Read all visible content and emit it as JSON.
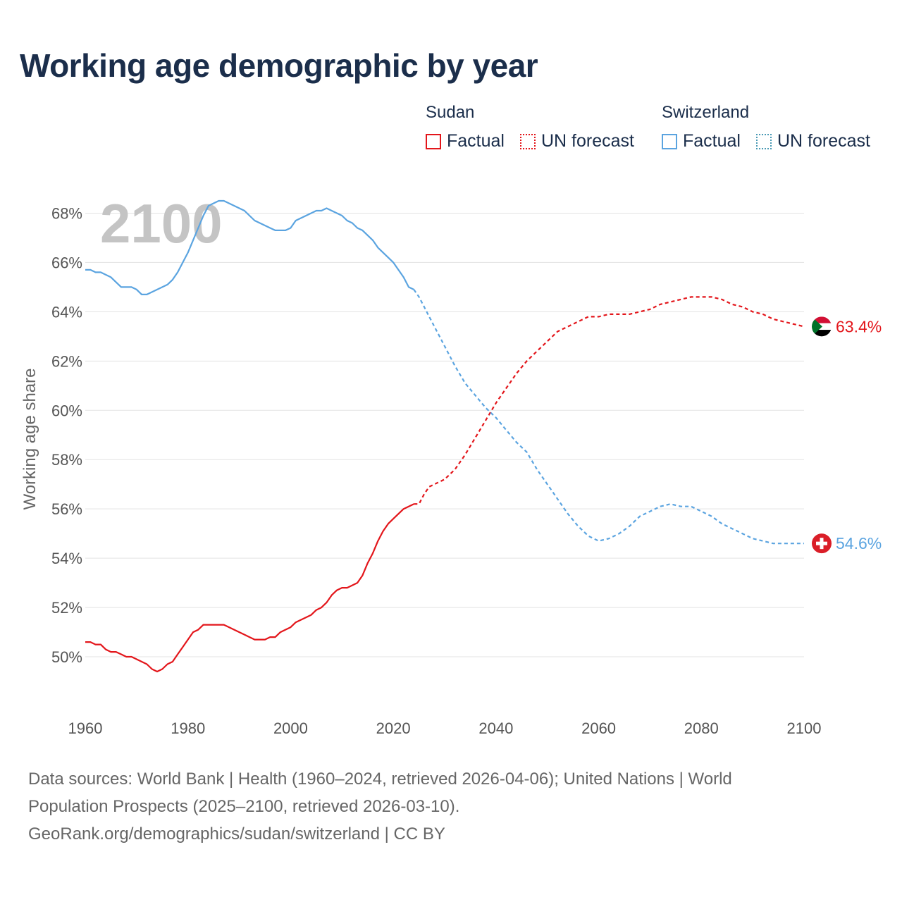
{
  "title": "Working age demographic by year",
  "legend": {
    "groups": [
      {
        "name": "Sudan",
        "factual_label": "Factual",
        "forecast_label": "UN forecast"
      },
      {
        "name": "Switzerland",
        "factual_label": "Factual",
        "forecast_label": "UN forecast"
      }
    ]
  },
  "year_watermark": "2100",
  "source_line1": "Data sources: World Bank | Health (1960–2024, retrieved 2026-04-06); United Nations | World",
  "source_line2": "Population Prospects (2025–2100, retrieved 2026-03-10).",
  "source_line3": "GeoRank.org/demographics/sudan/switzerland | CC BY",
  "colors": {
    "sudan": "#e3161b",
    "switzerland": "#5ba4e0",
    "title": "#1b2e4b"
  },
  "chart_data": {
    "type": "line",
    "title": "Working age demographic by year",
    "xlabel": "",
    "ylabel": "Working age share",
    "xlim": [
      1960,
      2100
    ],
    "ylim": [
      48,
      69.5
    ],
    "x_ticks": [
      1960,
      1980,
      2000,
      2020,
      2040,
      2060,
      2080,
      2100
    ],
    "x_tick_labels": [
      "1960",
      "1980",
      "2000",
      "2020",
      "2040",
      "2060",
      "2080",
      "2100"
    ],
    "y_ticks": [
      50,
      52,
      54,
      56,
      58,
      60,
      62,
      64,
      66,
      68
    ],
    "y_tick_labels": [
      "50%",
      "52%",
      "54%",
      "56%",
      "58%",
      "60%",
      "62%",
      "64%",
      "66%",
      "68%"
    ],
    "factual_end_year": 2024,
    "series": [
      {
        "name": "Sudan",
        "color": "#e3161b",
        "end_label": "63.4%",
        "x": [
          1960,
          1961,
          1962,
          1963,
          1964,
          1965,
          1966,
          1967,
          1968,
          1969,
          1970,
          1971,
          1972,
          1973,
          1974,
          1975,
          1976,
          1977,
          1978,
          1979,
          1980,
          1981,
          1982,
          1983,
          1984,
          1985,
          1986,
          1987,
          1988,
          1989,
          1990,
          1991,
          1992,
          1993,
          1994,
          1995,
          1996,
          1997,
          1998,
          1999,
          2000,
          2001,
          2002,
          2003,
          2004,
          2005,
          2006,
          2007,
          2008,
          2009,
          2010,
          2011,
          2012,
          2013,
          2014,
          2015,
          2016,
          2017,
          2018,
          2019,
          2020,
          2021,
          2022,
          2023,
          2024,
          2025,
          2026,
          2027,
          2028,
          2029,
          2030,
          2032,
          2034,
          2036,
          2038,
          2040,
          2042,
          2044,
          2046,
          2048,
          2050,
          2052,
          2054,
          2056,
          2058,
          2060,
          2062,
          2064,
          2066,
          2068,
          2070,
          2072,
          2074,
          2076,
          2078,
          2080,
          2082,
          2084,
          2086,
          2088,
          2090,
          2092,
          2094,
          2096,
          2098,
          2100
        ],
        "values": [
          50.6,
          50.6,
          50.5,
          50.5,
          50.3,
          50.2,
          50.2,
          50.1,
          50.0,
          50.0,
          49.9,
          49.8,
          49.7,
          49.5,
          49.4,
          49.5,
          49.7,
          49.8,
          50.1,
          50.4,
          50.7,
          51.0,
          51.1,
          51.3,
          51.3,
          51.3,
          51.3,
          51.3,
          51.2,
          51.1,
          51.0,
          50.9,
          50.8,
          50.7,
          50.7,
          50.7,
          50.8,
          50.8,
          51.0,
          51.1,
          51.2,
          51.4,
          51.5,
          51.6,
          51.7,
          51.9,
          52.0,
          52.2,
          52.5,
          52.7,
          52.8,
          52.8,
          52.9,
          53.0,
          53.3,
          53.8,
          54.2,
          54.7,
          55.1,
          55.4,
          55.6,
          55.8,
          56.0,
          56.1,
          56.2,
          56.2,
          56.6,
          56.9,
          57.0,
          57.1,
          57.2,
          57.6,
          58.2,
          58.9,
          59.6,
          60.3,
          60.9,
          61.5,
          62.0,
          62.4,
          62.8,
          63.2,
          63.4,
          63.6,
          63.8,
          63.8,
          63.9,
          63.9,
          63.9,
          64.0,
          64.1,
          64.3,
          64.4,
          64.5,
          64.6,
          64.6,
          64.6,
          64.5,
          64.3,
          64.2,
          64.0,
          63.9,
          63.7,
          63.6,
          63.5,
          63.4
        ]
      },
      {
        "name": "Switzerland",
        "color": "#5ba4e0",
        "end_label": "54.6%",
        "x": [
          1960,
          1961,
          1962,
          1963,
          1964,
          1965,
          1966,
          1967,
          1968,
          1969,
          1970,
          1971,
          1972,
          1973,
          1974,
          1975,
          1976,
          1977,
          1978,
          1979,
          1980,
          1981,
          1982,
          1983,
          1984,
          1985,
          1986,
          1987,
          1988,
          1989,
          1990,
          1991,
          1992,
          1993,
          1994,
          1995,
          1996,
          1997,
          1998,
          1999,
          2000,
          2001,
          2002,
          2003,
          2004,
          2005,
          2006,
          2007,
          2008,
          2009,
          2010,
          2011,
          2012,
          2013,
          2014,
          2015,
          2016,
          2017,
          2018,
          2019,
          2020,
          2021,
          2022,
          2023,
          2024,
          2025,
          2026,
          2027,
          2028,
          2029,
          2030,
          2032,
          2034,
          2036,
          2038,
          2040,
          2042,
          2044,
          2046,
          2048,
          2050,
          2052,
          2054,
          2056,
          2058,
          2060,
          2062,
          2064,
          2066,
          2068,
          2070,
          2072,
          2074,
          2076,
          2078,
          2080,
          2082,
          2084,
          2086,
          2088,
          2090,
          2092,
          2094,
          2096,
          2098,
          2100
        ],
        "values": [
          65.7,
          65.7,
          65.6,
          65.6,
          65.5,
          65.4,
          65.2,
          65.0,
          65.0,
          65.0,
          64.9,
          64.7,
          64.7,
          64.8,
          64.9,
          65.0,
          65.1,
          65.3,
          65.6,
          66.0,
          66.4,
          66.9,
          67.4,
          67.9,
          68.3,
          68.4,
          68.5,
          68.5,
          68.4,
          68.3,
          68.2,
          68.1,
          67.9,
          67.7,
          67.6,
          67.5,
          67.4,
          67.3,
          67.3,
          67.3,
          67.4,
          67.7,
          67.8,
          67.9,
          68.0,
          68.1,
          68.1,
          68.2,
          68.1,
          68.0,
          67.9,
          67.7,
          67.6,
          67.4,
          67.3,
          67.1,
          66.9,
          66.6,
          66.4,
          66.2,
          66.0,
          65.7,
          65.4,
          65.0,
          64.9,
          64.6,
          64.2,
          63.8,
          63.4,
          63.0,
          62.6,
          61.8,
          61.1,
          60.6,
          60.1,
          59.7,
          59.2,
          58.7,
          58.3,
          57.6,
          57.0,
          56.4,
          55.8,
          55.3,
          54.9,
          54.7,
          54.8,
          55.0,
          55.3,
          55.7,
          55.9,
          56.1,
          56.2,
          56.1,
          56.1,
          55.9,
          55.7,
          55.4,
          55.2,
          55.0,
          54.8,
          54.7,
          54.6,
          54.6,
          54.6,
          54.6
        ]
      }
    ]
  }
}
